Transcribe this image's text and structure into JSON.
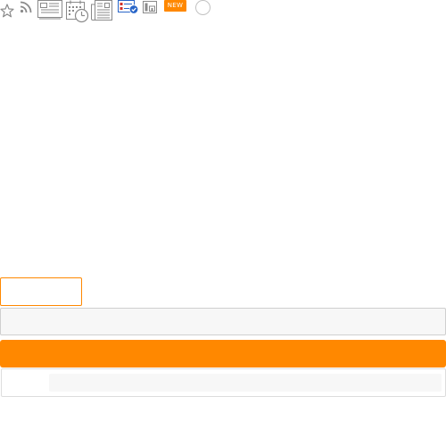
{
  "colors": {
    "accent": "#ff8800",
    "icon_gray": "#8a8a8a",
    "icon_blue": "#2a66c8",
    "icon_red": "#d0302a"
  },
  "toolbar": {
    "icons": [
      "star-outline-icon",
      "rss-icon",
      "article-icon",
      "calendar-clock-icon",
      "newspaper-icon",
      "checklist-badge-icon",
      "building-icon"
    ],
    "new_badge": "NEW"
  }
}
